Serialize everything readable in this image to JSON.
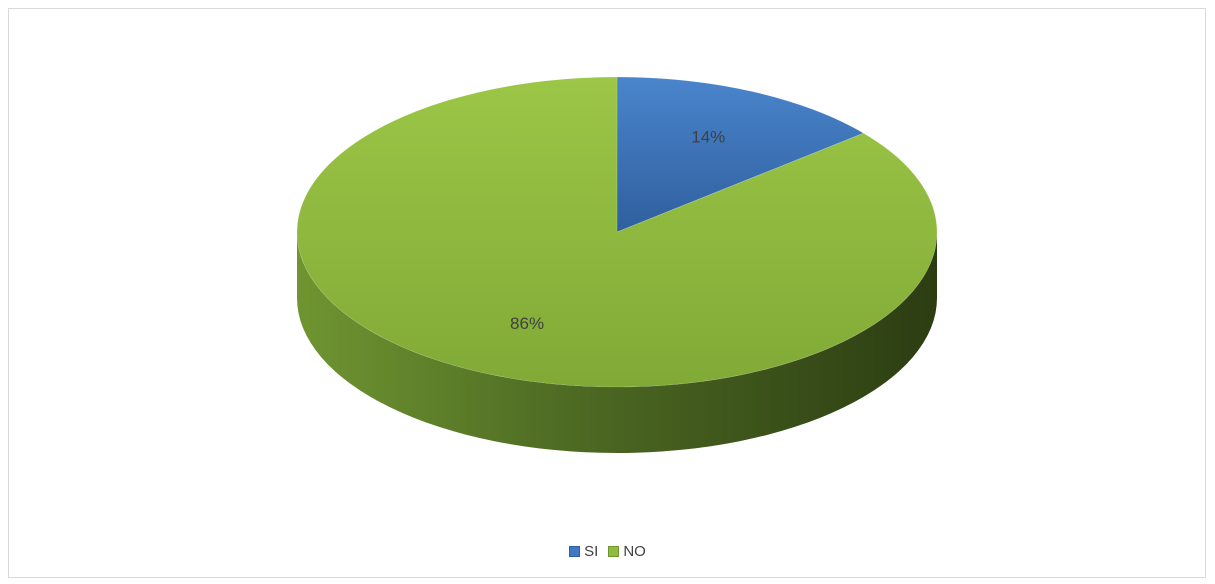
{
  "chart_data": {
    "type": "pie",
    "title": "",
    "categories": [
      "SI",
      "NO"
    ],
    "values": [
      14,
      86
    ],
    "data_labels": [
      "14%",
      "86%"
    ],
    "colors": [
      "#3f78c0",
      "#8fbb3e"
    ],
    "legend_position": "bottom",
    "style": "3d"
  },
  "legend": {
    "items": [
      {
        "label": "SI",
        "color": "#3f78c0"
      },
      {
        "label": "NO",
        "color": "#8fbb3e"
      }
    ]
  }
}
